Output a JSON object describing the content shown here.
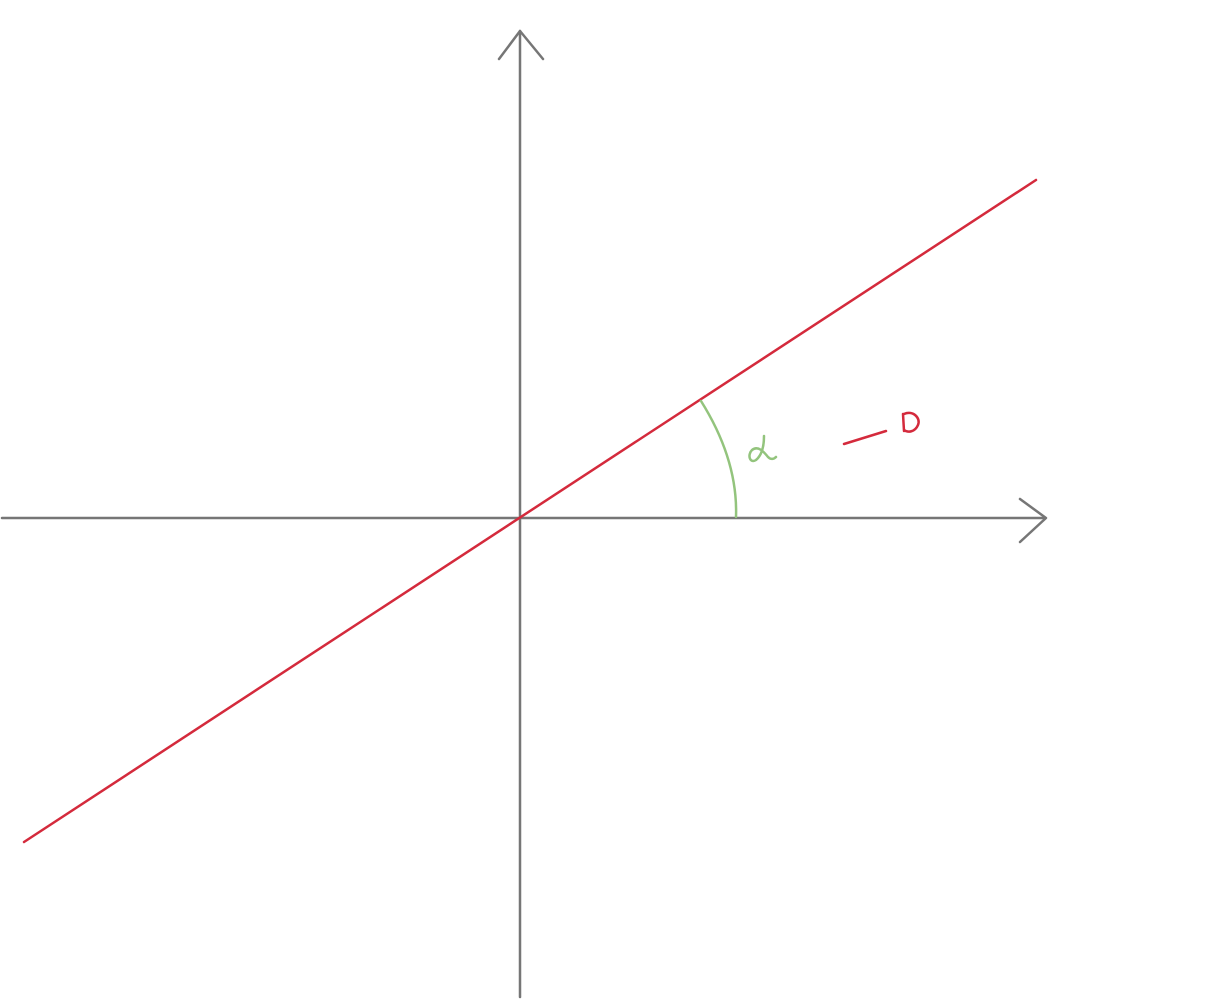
{
  "diagram": {
    "colors": {
      "axes": "#767676",
      "line": "#d42a3c",
      "angle": "#93c47d"
    },
    "angle_symbol": "α",
    "line_label": "D"
  }
}
